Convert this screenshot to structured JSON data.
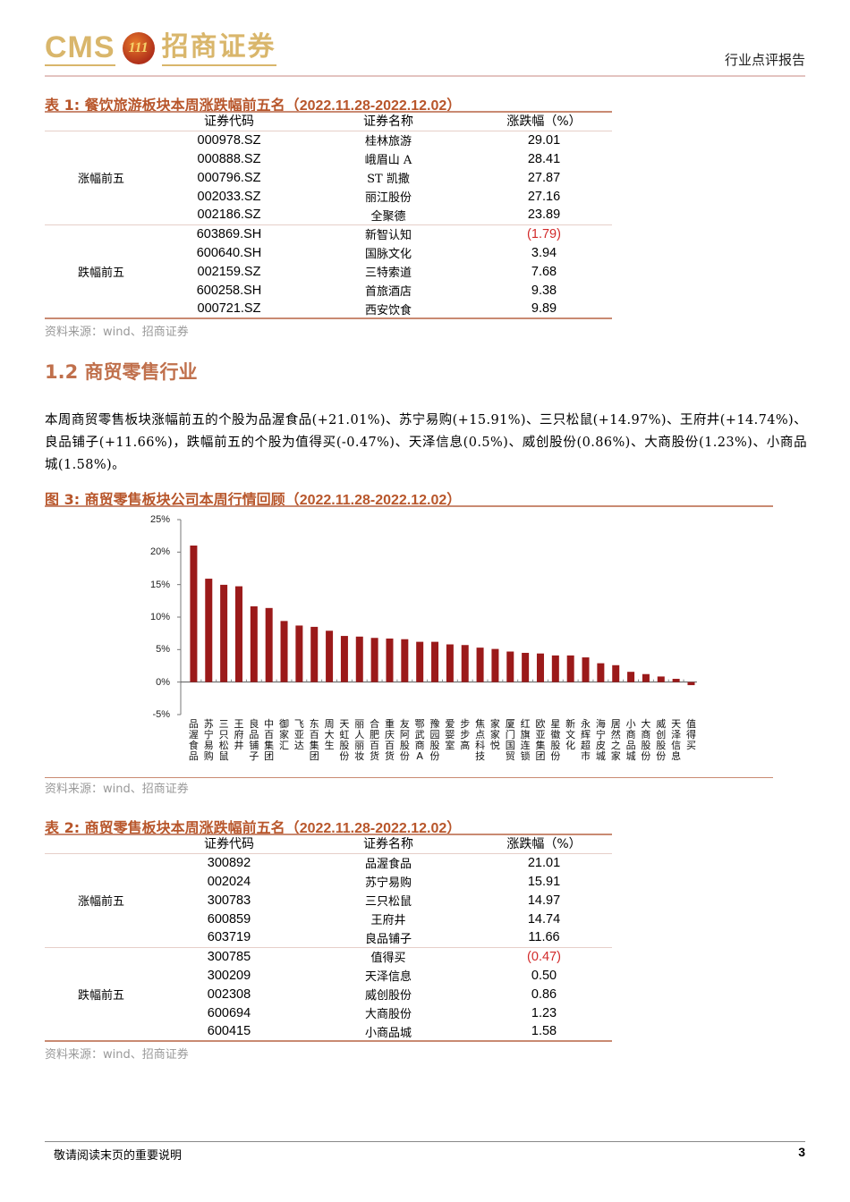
{
  "header": {
    "logo_latin": "CMS",
    "logo_badge": "111",
    "logo_cn": "招商证券",
    "report_type": "行业点评报告"
  },
  "table1": {
    "caption_prefix": "表 1:  餐饮旅游板块本周涨跌幅前五名（",
    "caption_date": "2022.11.28-2022.12.02",
    "caption_suffix": "）",
    "columns": [
      "",
      "证券代码",
      "证券名称",
      "涨跌幅（%）"
    ],
    "groups": [
      {
        "label": "涨幅前五",
        "rows": [
          {
            "code": "000978.SZ",
            "name": "桂林旅游",
            "change": "29.01"
          },
          {
            "code": "000888.SZ",
            "name": "峨眉山 A",
            "change": "28.41"
          },
          {
            "code": "000796.SZ",
            "name": "ST 凯撒",
            "change": "27.87"
          },
          {
            "code": "002033.SZ",
            "name": "丽江股份",
            "change": "27.16"
          },
          {
            "code": "002186.SZ",
            "name": "全聚德",
            "change": "23.89"
          }
        ]
      },
      {
        "label": "跌幅前五",
        "rows": [
          {
            "code": "603869.SH",
            "name": "新智认知",
            "change": "(1.79)"
          },
          {
            "code": "600640.SH",
            "name": "国脉文化",
            "change": "3.94"
          },
          {
            "code": "002159.SZ",
            "name": "三特索道",
            "change": "7.68"
          },
          {
            "code": "600258.SH",
            "name": "首旅酒店",
            "change": "9.38"
          },
          {
            "code": "000721.SZ",
            "name": "西安饮食",
            "change": "9.89"
          }
        ]
      }
    ],
    "source": "资料来源：wind、招商证券"
  },
  "section": {
    "title": "1.2 商贸零售行业",
    "paragraph": "本周商贸零售板块涨幅前五的个股为品渥食品(+21.01%)、苏宁易购(+15.91%)、三只松鼠(+14.97%)、王府井(+14.74%)、良品铺子(+11.66%)，跌幅前五的个股为值得买(-0.47%)、天泽信息(0.5%)、威创股份(0.86%)、大商股份(1.23%)、小商品城(1.58%)。"
  },
  "figure3": {
    "caption_prefix": "图 3:  商贸零售板块公司本周行情回顾（",
    "caption_date": "2022.11.28-2022.12.02",
    "caption_suffix": "）",
    "source": "资料来源：wind、招商证券"
  },
  "chart_data": {
    "type": "bar",
    "title": "商贸零售板块公司本周行情回顾（2022.11.28-2022.12.02）",
    "xlabel": "",
    "ylabel": "",
    "ylim": [
      -5,
      25
    ],
    "yticks": [
      "25%",
      "20%",
      "15%",
      "10%",
      "5%",
      "0%",
      "-5%"
    ],
    "grid": false,
    "legend": null,
    "bar_color": "#9b1a1a",
    "categories": [
      "品渥食品",
      "苏宁易购",
      "三只松鼠",
      "王府井",
      "良品铺子",
      "中百集团",
      "御家汇",
      "飞亚达",
      "东百集团",
      "周大生",
      "天虹股份",
      "丽人丽妆",
      "合肥百货",
      "重庆百货",
      "友阿股份",
      "鄂武商A",
      "豫园股份",
      "爱婴室",
      "步步高",
      "焦点科技",
      "家家悦",
      "厦门国贸",
      "红旗连锁",
      "欧亚集团",
      "星徽股份",
      "新文化",
      "永辉超市",
      "海宁皮城",
      "居然之家",
      "小商品城",
      "大商股份",
      "威创股份",
      "天泽信息",
      "值得买"
    ],
    "values": [
      21.01,
      15.91,
      14.97,
      14.74,
      11.66,
      11.4,
      9.4,
      8.7,
      8.5,
      7.9,
      7.1,
      7.0,
      6.8,
      6.7,
      6.6,
      6.2,
      6.2,
      5.8,
      5.7,
      5.3,
      5.1,
      4.7,
      4.5,
      4.4,
      4.1,
      4.1,
      3.8,
      2.9,
      2.6,
      1.58,
      1.23,
      0.86,
      0.5,
      -0.47
    ]
  },
  "table2": {
    "caption_prefix": "表 2:  商贸零售板块本周涨跌幅前五名（",
    "caption_date": "2022.11.28-2022.12.02",
    "caption_suffix": "）",
    "columns": [
      "",
      "证券代码",
      "证券名称",
      "涨跌幅（%）"
    ],
    "groups": [
      {
        "label": "涨幅前五",
        "rows": [
          {
            "code": "300892",
            "name": "品渥食品",
            "change": "21.01"
          },
          {
            "code": "002024",
            "name": "苏宁易购",
            "change": "15.91"
          },
          {
            "code": "300783",
            "name": "三只松鼠",
            "change": "14.97"
          },
          {
            "code": "600859",
            "name": "王府井",
            "change": "14.74"
          },
          {
            "code": "603719",
            "name": "良品铺子",
            "change": "11.66"
          }
        ]
      },
      {
        "label": "跌幅前五",
        "rows": [
          {
            "code": "300785",
            "name": "值得买",
            "change": "(0.47)"
          },
          {
            "code": "300209",
            "name": "天泽信息",
            "change": "0.50"
          },
          {
            "code": "002308",
            "name": "威创股份",
            "change": "0.86"
          },
          {
            "code": "600694",
            "name": "大商股份",
            "change": "1.23"
          },
          {
            "code": "600415",
            "name": "小商品城",
            "change": "1.58"
          }
        ]
      }
    ],
    "source": "资料来源：wind、招商证券"
  },
  "footer": {
    "notice": "敬请阅读末页的重要说明",
    "page_number": "3"
  },
  "colors": {
    "accent": "#b8562b",
    "rule": "#c98a72",
    "negative": "#d22a2a",
    "bar": "#9b1a1a",
    "logo_gold": "#d9b66b"
  }
}
